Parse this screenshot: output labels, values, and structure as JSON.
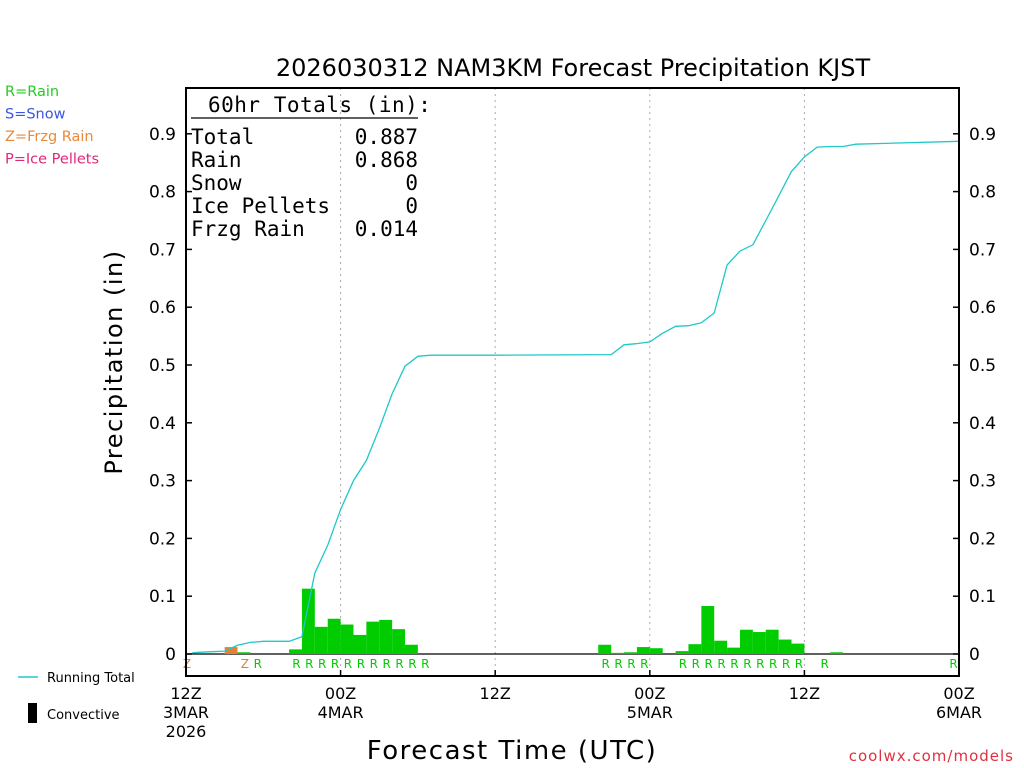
{
  "chart_data": {
    "type": "bar",
    "title": "2026030312 NAM3KM Forecast Precipitation KJST",
    "xlabel": "Forecast Time (UTC)",
    "ylabel": "Precipitation (in)",
    "ylim": [
      -0.04,
      0.98
    ],
    "xlim_hours": [
      0,
      60
    ],
    "yticks": [
      "0",
      "0.1",
      "0.2",
      "0.3",
      "0.4",
      "0.5",
      "0.6",
      "0.7",
      "0.8",
      "0.9"
    ],
    "ytick_values": [
      0,
      0.1,
      0.2,
      0.3,
      0.4,
      0.5,
      0.6,
      0.7,
      0.8,
      0.9
    ],
    "xticks": [
      {
        "hour": 0,
        "lines": [
          "12Z",
          "3MAR",
          "2026"
        ]
      },
      {
        "hour": 12,
        "lines": [
          "00Z",
          "4MAR"
        ]
      },
      {
        "hour": 24,
        "lines": [
          "12Z"
        ]
      },
      {
        "hour": 36,
        "lines": [
          "00Z",
          "5MAR"
        ]
      },
      {
        "hour": 48,
        "lines": [
          "12Z"
        ]
      },
      {
        "hour": 60,
        "lines": [
          "00Z",
          "6MAR"
        ]
      }
    ],
    "grid_hours": [
      12,
      24,
      36,
      48
    ],
    "totals_box": {
      "header": "60hr Totals (in):",
      "rows": [
        {
          "label": "Total",
          "value": "0.887"
        },
        {
          "label": "Rain",
          "value": "0.868"
        },
        {
          "label": "Snow",
          "value": "0"
        },
        {
          "label": "Ice Pellets",
          "value": "0"
        },
        {
          "label": "Frzg Rain",
          "value": "0.014"
        }
      ]
    },
    "type_legend": [
      {
        "text": "R=Rain",
        "color": "#22cc22"
      },
      {
        "text": "S=Snow",
        "color": "#3a55e0"
      },
      {
        "text": "Z=Frzg Rain",
        "color": "#e88a3a"
      },
      {
        "text": "P=Ice Pellets",
        "color": "#e0287a"
      }
    ],
    "series_legend": {
      "running_total": "Running Total",
      "convective": "Convective"
    },
    "credit": "coolwx.com/models",
    "colors": {
      "rain": "#00cc00",
      "frzg": "#e88030",
      "running_total": "#20c8c8",
      "axis": "#000000",
      "grid": "#aaaaaa",
      "credit": "#e03040"
    },
    "bars": [
      {
        "hour": 4,
        "value": 0.012,
        "type": "Z"
      },
      {
        "hour": 5,
        "value": 0.003,
        "type": "R"
      },
      {
        "hour": 9,
        "value": 0.008,
        "type": "R"
      },
      {
        "hour": 10,
        "value": 0.113,
        "type": "R"
      },
      {
        "hour": 11,
        "value": 0.047,
        "type": "R"
      },
      {
        "hour": 12,
        "value": 0.061,
        "type": "R"
      },
      {
        "hour": 13,
        "value": 0.051,
        "type": "R"
      },
      {
        "hour": 14,
        "value": 0.033,
        "type": "R"
      },
      {
        "hour": 15,
        "value": 0.056,
        "type": "R"
      },
      {
        "hour": 16,
        "value": 0.059,
        "type": "R"
      },
      {
        "hour": 17,
        "value": 0.043,
        "type": "R"
      },
      {
        "hour": 18,
        "value": 0.016,
        "type": "R"
      },
      {
        "hour": 33,
        "value": 0.016,
        "type": "R"
      },
      {
        "hour": 34,
        "value": 0.002,
        "type": "R"
      },
      {
        "hour": 35,
        "value": 0.003,
        "type": "R"
      },
      {
        "hour": 36,
        "value": 0.012,
        "type": "R"
      },
      {
        "hour": 37,
        "value": 0.01,
        "type": "R"
      },
      {
        "hour": 39,
        "value": 0.005,
        "type": "R"
      },
      {
        "hour": 40,
        "value": 0.017,
        "type": "R"
      },
      {
        "hour": 41,
        "value": 0.083,
        "type": "R"
      },
      {
        "hour": 42,
        "value": 0.023,
        "type": "R"
      },
      {
        "hour": 43,
        "value": 0.011,
        "type": "R"
      },
      {
        "hour": 44,
        "value": 0.042,
        "type": "R"
      },
      {
        "hour": 45,
        "value": 0.038,
        "type": "R"
      },
      {
        "hour": 46,
        "value": 0.042,
        "type": "R"
      },
      {
        "hour": 47,
        "value": 0.025,
        "type": "R"
      },
      {
        "hour": 48,
        "value": 0.018,
        "type": "R"
      },
      {
        "hour": 51,
        "value": 0.003,
        "type": "R"
      }
    ],
    "type_markers": [
      {
        "hour": 0.5,
        "type": "Z"
      },
      {
        "hour": 5,
        "type": "Z"
      },
      {
        "hour": 6,
        "type": "R"
      },
      {
        "hour": 9,
        "type": "R"
      },
      {
        "hour": 10,
        "type": "R"
      },
      {
        "hour": 11,
        "type": "R"
      },
      {
        "hour": 12,
        "type": "R"
      },
      {
        "hour": 13,
        "type": "R"
      },
      {
        "hour": 14,
        "type": "R"
      },
      {
        "hour": 15,
        "type": "R"
      },
      {
        "hour": 16,
        "type": "R"
      },
      {
        "hour": 17,
        "type": "R"
      },
      {
        "hour": 18,
        "type": "R"
      },
      {
        "hour": 19,
        "type": "R"
      },
      {
        "hour": 33,
        "type": "R"
      },
      {
        "hour": 34,
        "type": "R"
      },
      {
        "hour": 35,
        "type": "R"
      },
      {
        "hour": 36,
        "type": "R"
      },
      {
        "hour": 39,
        "type": "R"
      },
      {
        "hour": 40,
        "type": "R"
      },
      {
        "hour": 41,
        "type": "R"
      },
      {
        "hour": 42,
        "type": "R"
      },
      {
        "hour": 43,
        "type": "R"
      },
      {
        "hour": 44,
        "type": "R"
      },
      {
        "hour": 45,
        "type": "R"
      },
      {
        "hour": 46,
        "type": "R"
      },
      {
        "hour": 47,
        "type": "R"
      },
      {
        "hour": 48,
        "type": "R"
      },
      {
        "hour": 50,
        "type": "R"
      },
      {
        "hour": 60,
        "type": "R"
      }
    ],
    "running_total": [
      [
        0.5,
        0.002
      ],
      [
        1,
        0.003
      ],
      [
        2,
        0.004
      ],
      [
        3,
        0.005
      ],
      [
        4,
        0.015
      ],
      [
        5,
        0.02
      ],
      [
        6,
        0.022
      ],
      [
        8,
        0.022
      ],
      [
        9,
        0.03
      ],
      [
        10,
        0.14
      ],
      [
        11,
        0.188
      ],
      [
        12,
        0.25
      ],
      [
        13,
        0.3
      ],
      [
        14,
        0.335
      ],
      [
        15,
        0.39
      ],
      [
        16,
        0.45
      ],
      [
        17,
        0.498
      ],
      [
        18,
        0.515
      ],
      [
        19,
        0.517
      ],
      [
        24,
        0.517
      ],
      [
        33,
        0.518
      ],
      [
        34,
        0.535
      ],
      [
        35,
        0.537
      ],
      [
        36,
        0.54
      ],
      [
        37,
        0.555
      ],
      [
        38,
        0.567
      ],
      [
        39,
        0.568
      ],
      [
        40,
        0.573
      ],
      [
        41,
        0.59
      ],
      [
        42,
        0.673
      ],
      [
        43,
        0.697
      ],
      [
        44,
        0.708
      ],
      [
        45,
        0.75
      ],
      [
        46,
        0.792
      ],
      [
        47,
        0.835
      ],
      [
        48,
        0.86
      ],
      [
        49,
        0.877
      ],
      [
        50,
        0.878
      ],
      [
        51,
        0.878
      ],
      [
        52,
        0.882
      ],
      [
        60,
        0.887
      ]
    ]
  }
}
